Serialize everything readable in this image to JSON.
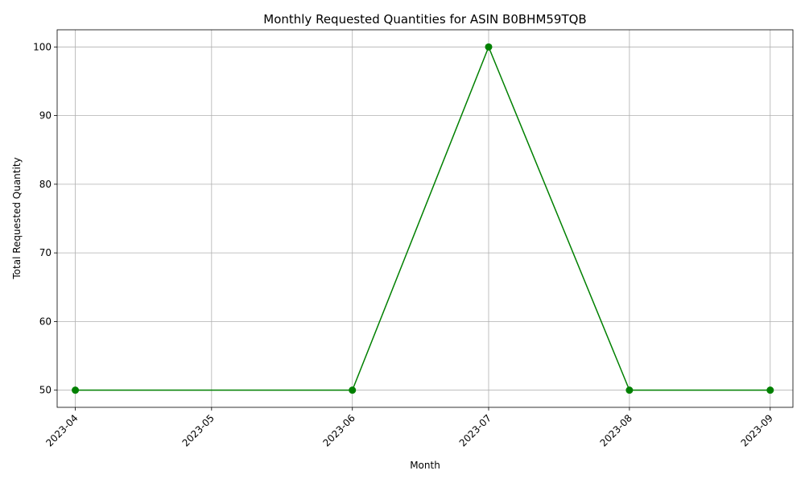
{
  "chart_data": {
    "type": "line",
    "title": "Monthly Requested Quantities for ASIN B0BHM59TQB",
    "xlabel": "Month",
    "ylabel": "Total Requested Quantity",
    "x_ticks": [
      "2023-04",
      "2023-05",
      "2023-06",
      "2023-07",
      "2023-08",
      "2023-09"
    ],
    "y_ticks": [
      50,
      60,
      70,
      80,
      90,
      100
    ],
    "xlim": [
      "2023-03-28",
      "2023-09-06"
    ],
    "ylim": [
      47.5,
      102.5
    ],
    "grid": true,
    "series": [
      {
        "color": "#008000",
        "marker": "circle",
        "points": [
          {
            "x": "2023-04-01",
            "y": 50
          },
          {
            "x": "2023-06-01",
            "y": 50
          },
          {
            "x": "2023-07-01",
            "y": 100
          },
          {
            "x": "2023-08-01",
            "y": 50
          },
          {
            "x": "2023-09-01",
            "y": 50
          }
        ]
      }
    ]
  }
}
